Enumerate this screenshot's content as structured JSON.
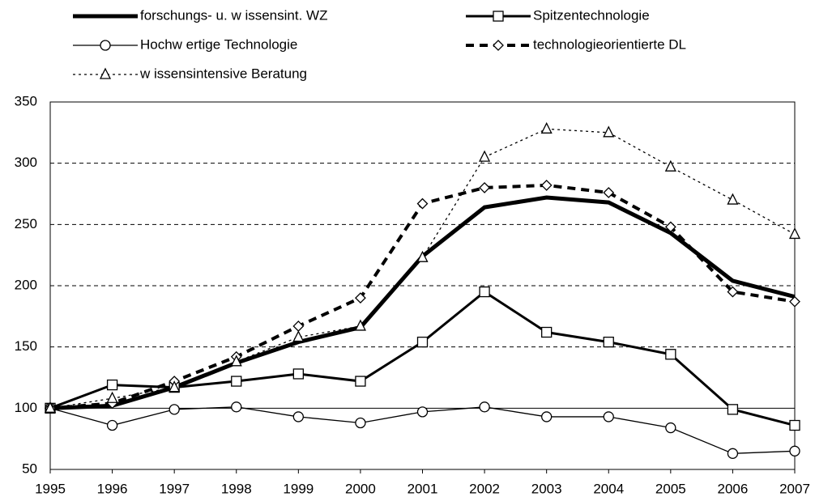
{
  "chart_data": {
    "type": "line",
    "x": [
      1995,
      1996,
      1997,
      1998,
      1999,
      2000,
      2001,
      2002,
      2003,
      2004,
      2005,
      2006,
      2007
    ],
    "xlim": [
      1995,
      2007
    ],
    "xticks": [
      1995,
      1996,
      1997,
      1998,
      1999,
      2000,
      2001,
      2002,
      2003,
      2004,
      2005,
      2006,
      2007
    ],
    "ylim": [
      50,
      350
    ],
    "yticks": [
      50,
      100,
      150,
      200,
      250,
      300,
      350
    ],
    "grid": true,
    "reference_line": 100,
    "series": [
      {
        "name": "forschungs- u. w issensint. WZ",
        "color": "#000000",
        "style": "thick",
        "marker": "none",
        "values": [
          100,
          102,
          117,
          137,
          154,
          166,
          224,
          264,
          272,
          268,
          243,
          204,
          191
        ]
      },
      {
        "name": "Spitzentechnologie",
        "color": "#000000",
        "style": "solid",
        "marker": "square",
        "values": [
          100,
          119,
          117,
          122,
          128,
          122,
          154,
          195,
          162,
          154,
          144,
          99,
          86
        ]
      },
      {
        "name": "Hochw ertige Technologie",
        "color": "#000000",
        "style": "thin",
        "marker": "circle",
        "values": [
          100,
          86,
          99,
          101,
          93,
          88,
          97,
          101,
          93,
          93,
          84,
          63,
          65
        ]
      },
      {
        "name": "technologieorientierte DL",
        "color": "#000000",
        "style": "dashed",
        "marker": "diamond",
        "values": [
          100,
          104,
          122,
          142,
          167,
          190,
          267,
          280,
          282,
          276,
          248,
          195,
          187
        ]
      },
      {
        "name": "w issensintensive Beratung",
        "color": "#000000",
        "style": "dotted",
        "marker": "triangle",
        "values": [
          100,
          108,
          117,
          138,
          158,
          167,
          223,
          305,
          328,
          325,
          297,
          270,
          242
        ]
      }
    ]
  }
}
